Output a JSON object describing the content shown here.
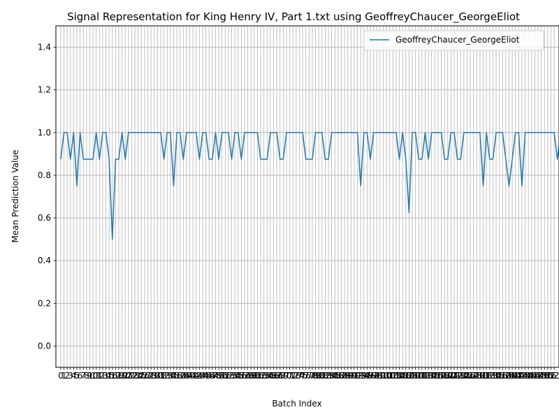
{
  "chart_data": {
    "type": "line",
    "title": "Signal Representation for King Henry IV, Part 1.txt using GeoffreyChaucer_GeorgeEliot",
    "xlabel": "Batch Index",
    "ylabel": "Mean Prediction Value",
    "ylim": [
      -0.1,
      1.5
    ],
    "xlim": [
      -1.5,
      154.5
    ],
    "yticks": [
      0.0,
      0.2,
      0.4,
      0.6,
      0.8,
      1.0,
      1.2,
      1.4
    ],
    "xticks_range": [
      0,
      153
    ],
    "grid": true,
    "legend_position": "top-right",
    "series": [
      {
        "name": "GeoffreyChaucer_GeorgeEliot",
        "color": "#1f77b4",
        "x_start": 0,
        "values": [
          0.875,
          1,
          1,
          0.875,
          1,
          0.75,
          1,
          0.875,
          0.875,
          0.875,
          0.875,
          1,
          0.875,
          1,
          1,
          0.875,
          0.5,
          0.875,
          0.875,
          1,
          0.875,
          1,
          1,
          1,
          1,
          1,
          1,
          1,
          1,
          1,
          1,
          1,
          0.875,
          1,
          1,
          0.75,
          1,
          1,
          0.875,
          1,
          1,
          1,
          1,
          0.875,
          1,
          1,
          0.875,
          0.875,
          1,
          0.875,
          1,
          1,
          1,
          0.875,
          1,
          1,
          0.875,
          1,
          1,
          1,
          1,
          1,
          0.875,
          0.875,
          0.875,
          1,
          1,
          1,
          0.875,
          0.875,
          1,
          1,
          1,
          1,
          1,
          1,
          0.875,
          0.875,
          0.875,
          1,
          1,
          1,
          0.875,
          0.875,
          1,
          1,
          1,
          1,
          1,
          1,
          1,
          1,
          1,
          0.75,
          1,
          1,
          0.875,
          1,
          1,
          1,
          1,
          1,
          1,
          1,
          1,
          0.875,
          1,
          0.875,
          0.625,
          1,
          1,
          0.875,
          0.875,
          1,
          0.875,
          1,
          1,
          1,
          1,
          0.875,
          0.875,
          1,
          1,
          0.875,
          0.875,
          1,
          1,
          1,
          1,
          1,
          1,
          0.75,
          1,
          0.875,
          0.875,
          1,
          1,
          1,
          0.875,
          0.75,
          0.875,
          1,
          1,
          0.75,
          1,
          1,
          1,
          1,
          1,
          1,
          1,
          1,
          1,
          1,
          0.875,
          1
        ]
      }
    ]
  }
}
